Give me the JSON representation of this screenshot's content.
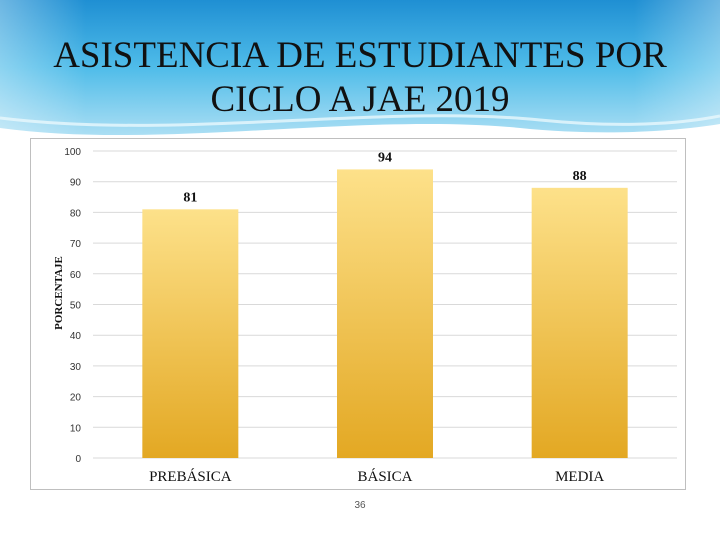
{
  "slide": {
    "title": "ASISTENCIA DE ESTUDIANTES POR CICLO A JAE 2019",
    "number": "36"
  },
  "colors": {
    "header_light": "#dff2fb",
    "header_mid": "#5cc3ee",
    "header_dark": "#2a9bd9",
    "bar_top": "#fde18a",
    "bar_bottom": "#e3a823"
  },
  "chart_data": {
    "type": "bar",
    "title": "",
    "categories": [
      "PREBÁSICA",
      "BÁSICA",
      "MEDIA"
    ],
    "values": [
      81,
      94,
      88
    ],
    "data_labels": [
      "81",
      "94",
      "88"
    ],
    "xlabel": "",
    "ylabel": "PORCENTAJE",
    "ylim": [
      0,
      100
    ],
    "yticks": [
      0,
      10,
      20,
      30,
      40,
      50,
      60,
      70,
      80,
      90,
      100
    ],
    "grid": true,
    "legend": "none"
  }
}
